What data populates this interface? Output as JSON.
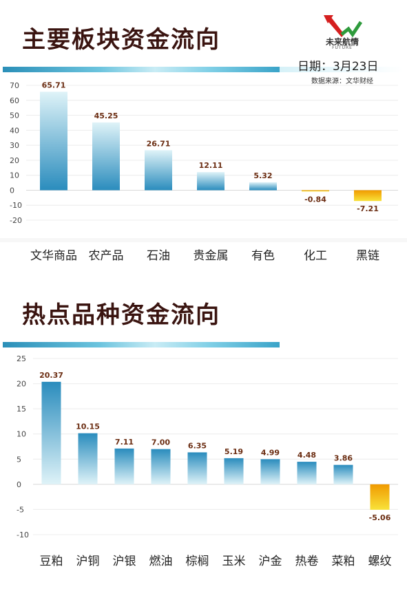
{
  "header": {
    "logo_text": "未来航情",
    "logo_sub": "FUTURE",
    "date_label": "日期：3月23日",
    "source_label": "数据来源：文华财经"
  },
  "colors": {
    "positive": "#2b8fbf",
    "negative": "#f0a000",
    "title": "#3a1410",
    "label": "#6b2d12"
  },
  "chart_data": [
    {
      "type": "bar",
      "title": "主要板块资金流向",
      "categories": [
        "文华商品",
        "农产品",
        "石油",
        "贵金属",
        "有色",
        "化工",
        "黑链"
      ],
      "values": [
        65.71,
        45.25,
        26.71,
        12.11,
        5.32,
        -0.84,
        -7.21
      ],
      "value_labels": [
        "65.71",
        "45.25",
        "26.71",
        "12.11",
        "5.32",
        "-0.84",
        "-7.21"
      ],
      "ylim": [
        -20,
        70
      ],
      "yticks": [
        70,
        60,
        50,
        40,
        30,
        20,
        10,
        0,
        -10,
        -20
      ],
      "grid": true,
      "xlabel": "",
      "ylabel": ""
    },
    {
      "type": "bar",
      "title": "热点品种资金流向",
      "categories": [
        "豆粕",
        "沪铜",
        "沪银",
        "燃油",
        "棕榈",
        "玉米",
        "沪金",
        "热卷",
        "菜粕",
        "螺纹"
      ],
      "values": [
        20.37,
        10.15,
        7.11,
        7.0,
        6.35,
        5.19,
        4.99,
        4.48,
        3.86,
        -5.06
      ],
      "value_labels": [
        "20.37",
        "10.15",
        "7.11",
        "7.00",
        "6.35",
        "5.19",
        "4.99",
        "4.48",
        "3.86",
        "-5.06"
      ],
      "ylim": [
        -10,
        25
      ],
      "yticks": [
        25,
        20,
        15,
        10,
        5,
        0,
        -5,
        -10
      ],
      "grid": true,
      "xlabel": "",
      "ylabel": ""
    }
  ]
}
